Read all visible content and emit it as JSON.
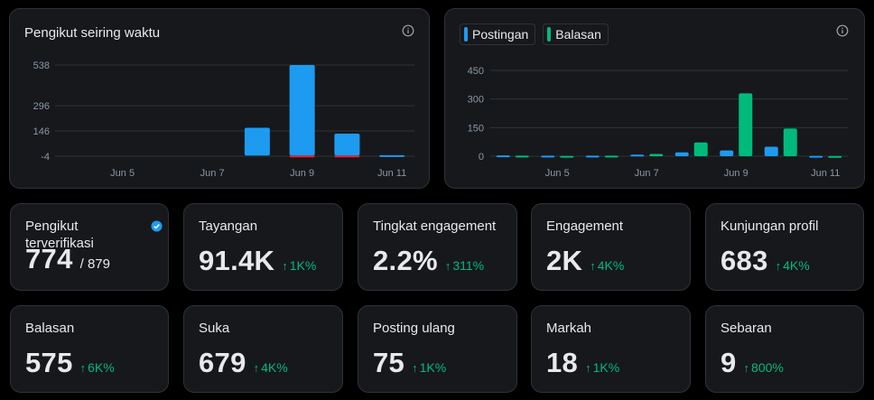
{
  "followers_chart": {
    "title": "Pengikut seiring waktu",
    "icon": "info-icon",
    "chart_data": {
      "type": "bar",
      "title": "Pengikut seiring waktu",
      "x": [
        "Jun 4",
        "Jun 5",
        "Jun 6",
        "Jun 7",
        "Jun 8",
        "Jun 9",
        "Jun 10",
        "Jun 11"
      ],
      "x_tick_labels": [
        "Jun 5",
        "Jun 7",
        "Jun 9",
        "Jun 11"
      ],
      "y_tick_labels": [
        "538",
        "296",
        "146",
        "-4"
      ],
      "ylim": [
        -4,
        538
      ],
      "series": [
        {
          "values": [
            0,
            0,
            0,
            0,
            165,
            538,
            130,
            2
          ],
          "color": "#1d9bf0"
        },
        {
          "values": [
            0,
            0,
            0,
            0,
            0,
            -2,
            -2,
            0
          ],
          "color": "#f4212e"
        }
      ],
      "grid": true
    }
  },
  "activity_chart": {
    "icon": "info-icon",
    "legend": [
      {
        "label": "Postingan",
        "color": "#1d9bf0"
      },
      {
        "label": "Balasan",
        "color": "#00ba7c"
      }
    ],
    "chart_data": {
      "type": "bar",
      "x": [
        "Jun 4",
        "Jun 5",
        "Jun 6",
        "Jun 7",
        "Jun 8",
        "Jun 9",
        "Jun 10",
        "Jun 11"
      ],
      "x_tick_labels": [
        "Jun 5",
        "Jun 7",
        "Jun 9",
        "Jun 11"
      ],
      "y_tick_labels": [
        "450",
        "300",
        "150",
        "0"
      ],
      "ylim": [
        0,
        450
      ],
      "series": [
        {
          "name": "Postingan",
          "color": "#1d9bf0",
          "values": [
            4,
            3,
            3,
            8,
            20,
            30,
            50,
            2
          ]
        },
        {
          "name": "Balasan",
          "color": "#00ba7c",
          "values": [
            3,
            2,
            3,
            12,
            72,
            330,
            145,
            1
          ]
        }
      ],
      "grid": true
    }
  },
  "stats_row1": [
    {
      "label": "Pengikut terverifikasi",
      "value": "774",
      "total": "/ 879",
      "change": "",
      "verified": true
    },
    {
      "label": "Tayangan",
      "value": "91.4K",
      "change": "1K%"
    },
    {
      "label": "Tingkat engagement",
      "value": "2.2%",
      "change": "311%"
    },
    {
      "label": "Engagement",
      "value": "2K",
      "change": "4K%"
    },
    {
      "label": "Kunjungan profil",
      "value": "683",
      "change": "4K%"
    }
  ],
  "stats_row2": [
    {
      "label": "Balasan",
      "value": "575",
      "change": "6K%"
    },
    {
      "label": "Suka",
      "value": "679",
      "change": "4K%"
    },
    {
      "label": "Posting ulang",
      "value": "75",
      "change": "1K%"
    },
    {
      "label": "Markah",
      "value": "18",
      "change": "1K%"
    },
    {
      "label": "Sebaran",
      "value": "9",
      "change": "800%"
    }
  ],
  "arrow": "↑",
  "colors": {
    "positive": "#00ba7c",
    "accent": "#1d9bf0",
    "negative": "#f4212e"
  }
}
